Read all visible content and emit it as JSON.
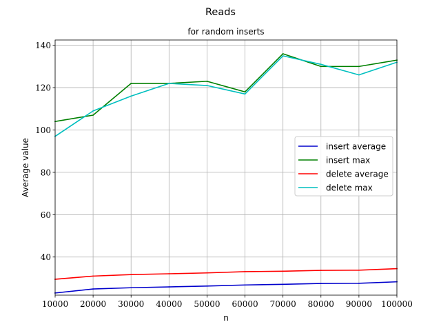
{
  "figure": {
    "suptitle": "Reads"
  },
  "chart_data": {
    "type": "line",
    "title": "for random inserts",
    "xlabel": "n",
    "ylabel": "Average value",
    "x": [
      10000,
      20000,
      30000,
      40000,
      50000,
      60000,
      70000,
      80000,
      90000,
      100000
    ],
    "xlim": [
      10000,
      100000
    ],
    "ylim": [
      22,
      142.5
    ],
    "xticks": [
      10000,
      20000,
      30000,
      40000,
      50000,
      60000,
      70000,
      80000,
      90000,
      100000
    ],
    "yticks": [
      40,
      60,
      80,
      100,
      120,
      140
    ],
    "grid": true,
    "legend_position": "center-right",
    "series": [
      {
        "name": "insert average",
        "color": "#0000cc",
        "values": [
          23.0,
          24.9,
          25.5,
          25.9,
          26.3,
          26.8,
          27.1,
          27.5,
          27.6,
          28.3
        ]
      },
      {
        "name": "insert max",
        "color": "#008000",
        "values": [
          104,
          107,
          122,
          122,
          123,
          118,
          136,
          130,
          130,
          133
        ]
      },
      {
        "name": "delete average",
        "color": "#ff0000",
        "values": [
          29.5,
          31.0,
          31.7,
          32.1,
          32.5,
          33.1,
          33.3,
          33.7,
          33.8,
          34.5
        ]
      },
      {
        "name": "delete max",
        "color": "#00bfbf",
        "values": [
          97,
          109,
          116,
          122,
          121,
          117,
          135,
          131,
          126,
          132
        ]
      }
    ]
  }
}
